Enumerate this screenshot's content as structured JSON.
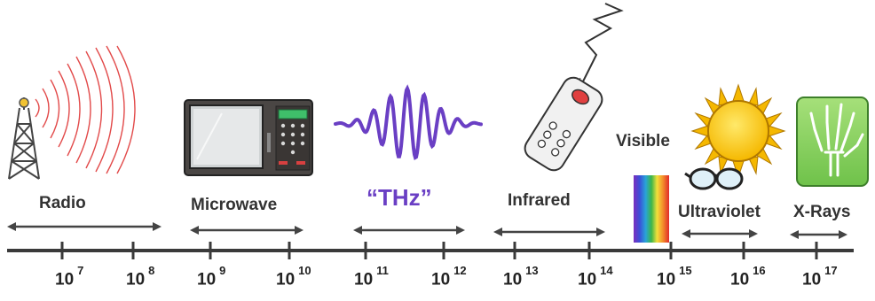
{
  "colors": {
    "axis": "#3a3a3a",
    "thz": "#6a3fc4",
    "radio_waves": "#e24a4a",
    "text": "#333333"
  },
  "bands": [
    {
      "id": "radio",
      "label": "Radio"
    },
    {
      "id": "microwave",
      "label": "Microwave"
    },
    {
      "id": "thz",
      "label": "“THz”"
    },
    {
      "id": "infrared",
      "label": "Infrared"
    },
    {
      "id": "visible",
      "label": "Visible"
    },
    {
      "id": "ultraviolet",
      "label": "Ultraviolet"
    },
    {
      "id": "xrays",
      "label": "X-Rays"
    }
  ],
  "ticks": [
    {
      "base": "10",
      "exp": "7"
    },
    {
      "base": "10",
      "exp": "8"
    },
    {
      "base": "10",
      "exp": "9"
    },
    {
      "base": "10",
      "exp": "10"
    },
    {
      "base": "10",
      "exp": "11"
    },
    {
      "base": "10",
      "exp": "12"
    },
    {
      "base": "10",
      "exp": "13"
    },
    {
      "base": "10",
      "exp": "14"
    },
    {
      "base": "10",
      "exp": "15"
    },
    {
      "base": "10",
      "exp": "16"
    },
    {
      "base": "10",
      "exp": "17"
    }
  ],
  "icons": {
    "radio": "radio-tower-icon",
    "microwave": "microwave-oven-icon",
    "thz": "thz-wave-icon",
    "infrared": "remote-control-icon",
    "visible": "rainbow-spectrum-icon",
    "ultraviolet": "sun-sunglasses-icon",
    "xrays": "xray-hand-icon"
  }
}
